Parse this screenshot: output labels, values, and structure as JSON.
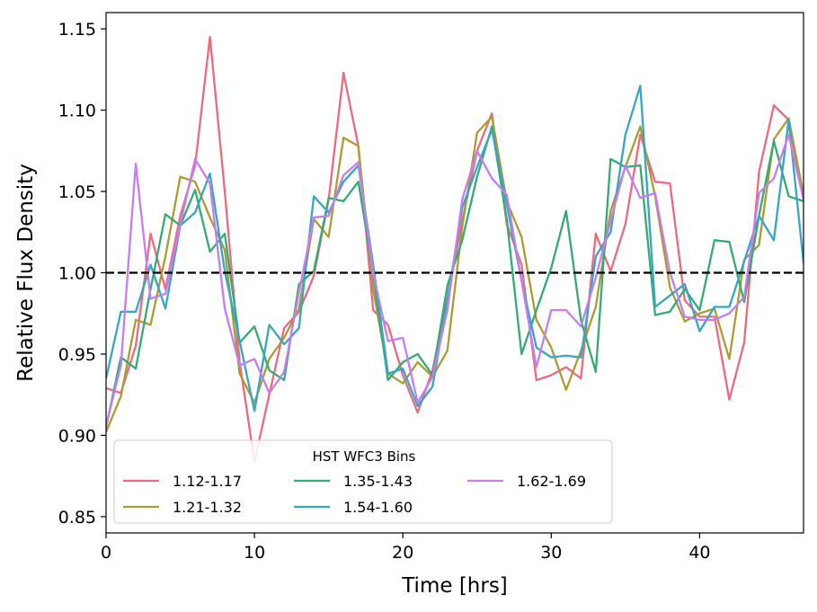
{
  "chart_data": {
    "type": "line",
    "title": "",
    "xlabel": "Time [hrs]",
    "ylabel": "Relative Flux Density",
    "xlim": [
      0,
      47
    ],
    "ylim": [
      0.84,
      1.16
    ],
    "xticks": [
      0,
      10,
      20,
      30,
      40
    ],
    "yticks": [
      0.85,
      0.9,
      0.95,
      1.0,
      1.05,
      1.1,
      1.15
    ],
    "ytick_labels": [
      "0.85",
      "0.90",
      "0.95",
      "1.00",
      "1.05",
      "1.10",
      "1.15"
    ],
    "grid": false,
    "reference_line": {
      "y": 1.0,
      "style": "dashed",
      "color": "#000000"
    },
    "legend": {
      "title": "HST WFC3 Bins",
      "location": "lower-left",
      "columns": 3
    },
    "series": [
      {
        "name": "1.12-1.17",
        "color": "#ec6a80",
        "x": [
          0,
          1,
          2,
          3,
          4,
          5,
          6,
          7,
          8,
          9,
          10,
          11,
          12,
          13,
          14,
          15,
          16,
          17,
          18,
          19,
          20,
          21,
          22,
          23,
          24,
          25,
          26,
          27,
          28,
          29,
          30,
          31,
          32,
          33,
          34,
          35,
          36,
          37,
          38,
          39,
          40,
          41,
          42,
          43,
          44,
          45,
          46,
          47
        ],
        "values": [
          0.929,
          0.926,
          0.955,
          1.024,
          0.99,
          1.035,
          1.066,
          1.145,
          1.05,
          0.945,
          0.884,
          0.925,
          0.966,
          0.976,
          0.998,
          1.045,
          1.123,
          1.078,
          0.977,
          0.968,
          0.937,
          0.914,
          0.94,
          0.984,
          1.032,
          1.075,
          1.098,
          1.03,
          1.005,
          0.934,
          0.937,
          0.942,
          0.935,
          1.024,
          1.001,
          1.03,
          1.085,
          1.056,
          1.055,
          0.983,
          0.973,
          0.973,
          0.922,
          0.957,
          1.062,
          1.103,
          1.094,
          1.045
        ]
      },
      {
        "name": "1.21-1.32",
        "color": "#ab9b33",
        "x": [
          0,
          1,
          2,
          3,
          4,
          5,
          6,
          7,
          8,
          9,
          10,
          11,
          12,
          13,
          14,
          15,
          16,
          17,
          18,
          19,
          20,
          21,
          22,
          23,
          24,
          25,
          26,
          27,
          28,
          29,
          30,
          31,
          32,
          33,
          34,
          35,
          36,
          37,
          38,
          39,
          40,
          41,
          42,
          43,
          44,
          45,
          46,
          47
        ],
        "values": [
          0.902,
          0.924,
          0.971,
          0.968,
          1.01,
          1.059,
          1.056,
          1.034,
          1.014,
          0.938,
          0.92,
          0.947,
          0.96,
          0.978,
          1.033,
          1.022,
          1.083,
          1.078,
          0.99,
          0.938,
          0.932,
          0.945,
          0.936,
          0.952,
          1.028,
          1.086,
          1.096,
          1.044,
          1.022,
          0.971,
          0.954,
          0.928,
          0.952,
          0.979,
          1.038,
          1.065,
          1.09,
          1.047,
          0.991,
          0.97,
          0.975,
          0.978,
          0.947,
          1.008,
          1.017,
          1.082,
          1.095,
          1.048
        ]
      },
      {
        "name": "1.35-1.43",
        "color": "#33ab74",
        "x": [
          0,
          1,
          2,
          3,
          4,
          5,
          6,
          7,
          8,
          9,
          10,
          11,
          12,
          13,
          14,
          15,
          16,
          17,
          18,
          19,
          20,
          21,
          22,
          23,
          24,
          25,
          26,
          27,
          28,
          29,
          30,
          31,
          32,
          33,
          34,
          35,
          36,
          37,
          38,
          39,
          40,
          41,
          42,
          43,
          44,
          45,
          46,
          47
        ],
        "values": [
          0.905,
          0.948,
          0.941,
          0.99,
          1.036,
          1.029,
          1.051,
          1.013,
          1.024,
          0.957,
          0.967,
          0.94,
          0.934,
          0.993,
          1.001,
          1.046,
          1.044,
          1.056,
          1.0,
          0.934,
          0.945,
          0.95,
          0.937,
          0.992,
          1.02,
          1.059,
          1.09,
          1.033,
          0.95,
          0.977,
          1.003,
          1.038,
          0.971,
          0.939,
          1.07,
          1.065,
          1.066,
          0.974,
          0.976,
          0.99,
          0.977,
          1.02,
          1.019,
          0.982,
          1.035,
          1.081,
          1.047,
          1.044
        ]
      },
      {
        "name": "1.54-1.60",
        "color": "#36a6c3",
        "x": [
          0,
          1,
          2,
          3,
          4,
          5,
          6,
          7,
          8,
          9,
          10,
          11,
          12,
          13,
          14,
          15,
          16,
          17,
          18,
          19,
          20,
          21,
          22,
          23,
          24,
          25,
          26,
          27,
          28,
          29,
          30,
          31,
          32,
          33,
          34,
          35,
          36,
          37,
          38,
          39,
          40,
          41,
          42,
          43,
          44,
          45,
          46,
          47
        ],
        "values": [
          0.935,
          0.976,
          0.976,
          1.005,
          0.978,
          1.029,
          1.037,
          1.061,
          1.001,
          0.958,
          0.915,
          0.968,
          0.956,
          0.966,
          1.047,
          1.037,
          1.056,
          1.066,
          1.005,
          0.938,
          0.941,
          0.918,
          0.93,
          0.983,
          1.04,
          1.065,
          1.088,
          1.042,
          0.995,
          0.954,
          0.948,
          0.949,
          0.948,
          1.01,
          1.025,
          1.085,
          1.115,
          0.979,
          0.986,
          0.993,
          0.964,
          0.979,
          0.979,
          1.007,
          1.035,
          1.02,
          1.094,
          1.006
        ]
      },
      {
        "name": "1.62-1.69",
        "color": "#c67ded",
        "x": [
          0,
          1,
          2,
          3,
          4,
          5,
          6,
          7,
          8,
          9,
          10,
          11,
          12,
          13,
          14,
          15,
          16,
          17,
          18,
          19,
          20,
          21,
          22,
          23,
          24,
          25,
          26,
          27,
          28,
          29,
          30,
          31,
          32,
          33,
          34,
          35,
          36,
          37,
          38,
          39,
          40,
          41,
          42,
          43,
          44,
          45,
          46,
          47
        ],
        "values": [
          0.906,
          0.943,
          1.067,
          0.984,
          0.987,
          1.03,
          1.07,
          1.055,
          0.978,
          0.943,
          0.947,
          0.926,
          0.939,
          0.988,
          1.034,
          1.035,
          1.06,
          1.068,
          1.0,
          0.958,
          0.96,
          0.92,
          0.936,
          0.977,
          1.045,
          1.075,
          1.058,
          1.048,
          0.995,
          0.942,
          0.977,
          0.977,
          0.967,
          0.997,
          1.032,
          1.066,
          1.046,
          1.049,
          1.0,
          0.973,
          0.971,
          0.971,
          0.975,
          0.985,
          1.049,
          1.058,
          1.085,
          1.045
        ]
      }
    ]
  }
}
